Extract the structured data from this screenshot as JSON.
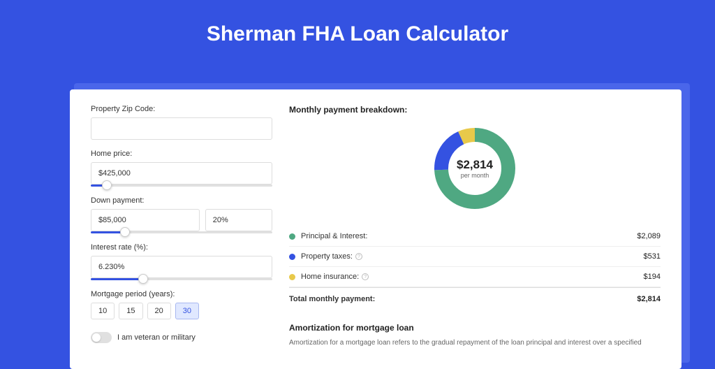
{
  "title": "Sherman FHA Loan Calculator",
  "colors": {
    "page_bg": "#3452e1",
    "accent": "#3452e1",
    "shadow_panel": "#4a66ea",
    "card_bg": "#ffffff",
    "pi": "#4fa882",
    "tax": "#3452e1",
    "ins": "#e8c94a"
  },
  "form": {
    "zip": {
      "label": "Property Zip Code:",
      "value": ""
    },
    "home_price": {
      "label": "Home price:",
      "value": "$425,000",
      "slider_pct": 9
    },
    "down_payment": {
      "label": "Down payment:",
      "value": "$85,000",
      "pct_value": "20%",
      "slider_pct": 19
    },
    "interest": {
      "label": "Interest rate (%):",
      "value": "6.230%",
      "slider_pct": 29
    },
    "period": {
      "label": "Mortgage period (years):",
      "options": [
        "10",
        "15",
        "20",
        "30"
      ],
      "selected": "30"
    },
    "veteran": {
      "label": "I am veteran or military",
      "checked": false
    }
  },
  "breakdown": {
    "title": "Monthly payment breakdown:",
    "center_amount": "$2,814",
    "center_sub": "per month",
    "items": [
      {
        "label": "Principal & Interest:",
        "value": "$2,089",
        "color": "#4fa882",
        "has_info": false,
        "pct": 74.2
      },
      {
        "label": "Property taxes:",
        "value": "$531",
        "color": "#3452e1",
        "has_info": true,
        "pct": 18.9
      },
      {
        "label": "Home insurance:",
        "value": "$194",
        "color": "#e8c94a",
        "has_info": true,
        "pct": 6.9
      }
    ],
    "total": {
      "label": "Total monthly payment:",
      "value": "$2,814"
    }
  },
  "amortization": {
    "title": "Amortization for mortgage loan",
    "text": "Amortization for a mortgage loan refers to the gradual repayment of the loan principal and interest over a specified"
  },
  "donut": {
    "radius": 48,
    "stroke_width": 20,
    "circumference": 301.59
  }
}
